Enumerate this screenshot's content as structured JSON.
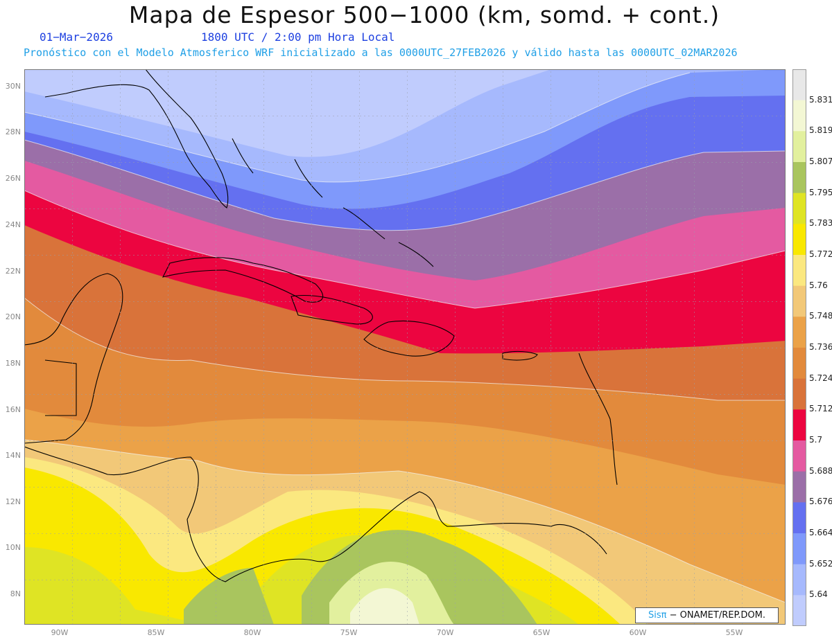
{
  "title": "Mapa de Espesor 500−1000 (km, somd. + cont.)",
  "date_label": "01−Mar−2026",
  "utc_label": "1800 UTC / 2:00 pm Hora Local",
  "model_info": "Pronóstico con el Modelo Atmosferico WRF inicializado a las 0000UTC_27FEB2026 y válido hasta las  0000UTC_02MAR2026",
  "lat_labels": [
    "30N",
    "28N",
    "26N",
    "24N",
    "22N",
    "20N",
    "18N",
    "16N",
    "14N",
    "12N",
    "10N",
    "8N"
  ],
  "lon_labels": [
    "90W",
    "85W",
    "80W",
    "75W",
    "70W",
    "65W",
    "60W",
    "55W"
  ],
  "legend": {
    "values": [
      "5.831",
      "5.819",
      "5.807",
      "5.795",
      "5.783",
      "5.772",
      "5.76",
      "5.748",
      "5.736",
      "5.724",
      "5.712",
      "5.7",
      "5.688",
      "5.676",
      "5.664",
      "5.652",
      "5.64"
    ],
    "colors": [
      "#e8e8e8",
      "#f3f7d4",
      "#e2f09e",
      "#a9c55e",
      "#dfe424",
      "#f9e800",
      "#fbe880",
      "#f2c878",
      "#eba248",
      "#e28a3c",
      "#d9733a",
      "#ec0540",
      "#e45aa1",
      "#9b6fa8",
      "#6470f0",
      "#7f99fb",
      "#a6b9fd",
      "#c0ccfd"
    ]
  },
  "credit": {
    "brand": "Sisπ",
    "text": "− ONAMET/REP.DOM."
  }
}
